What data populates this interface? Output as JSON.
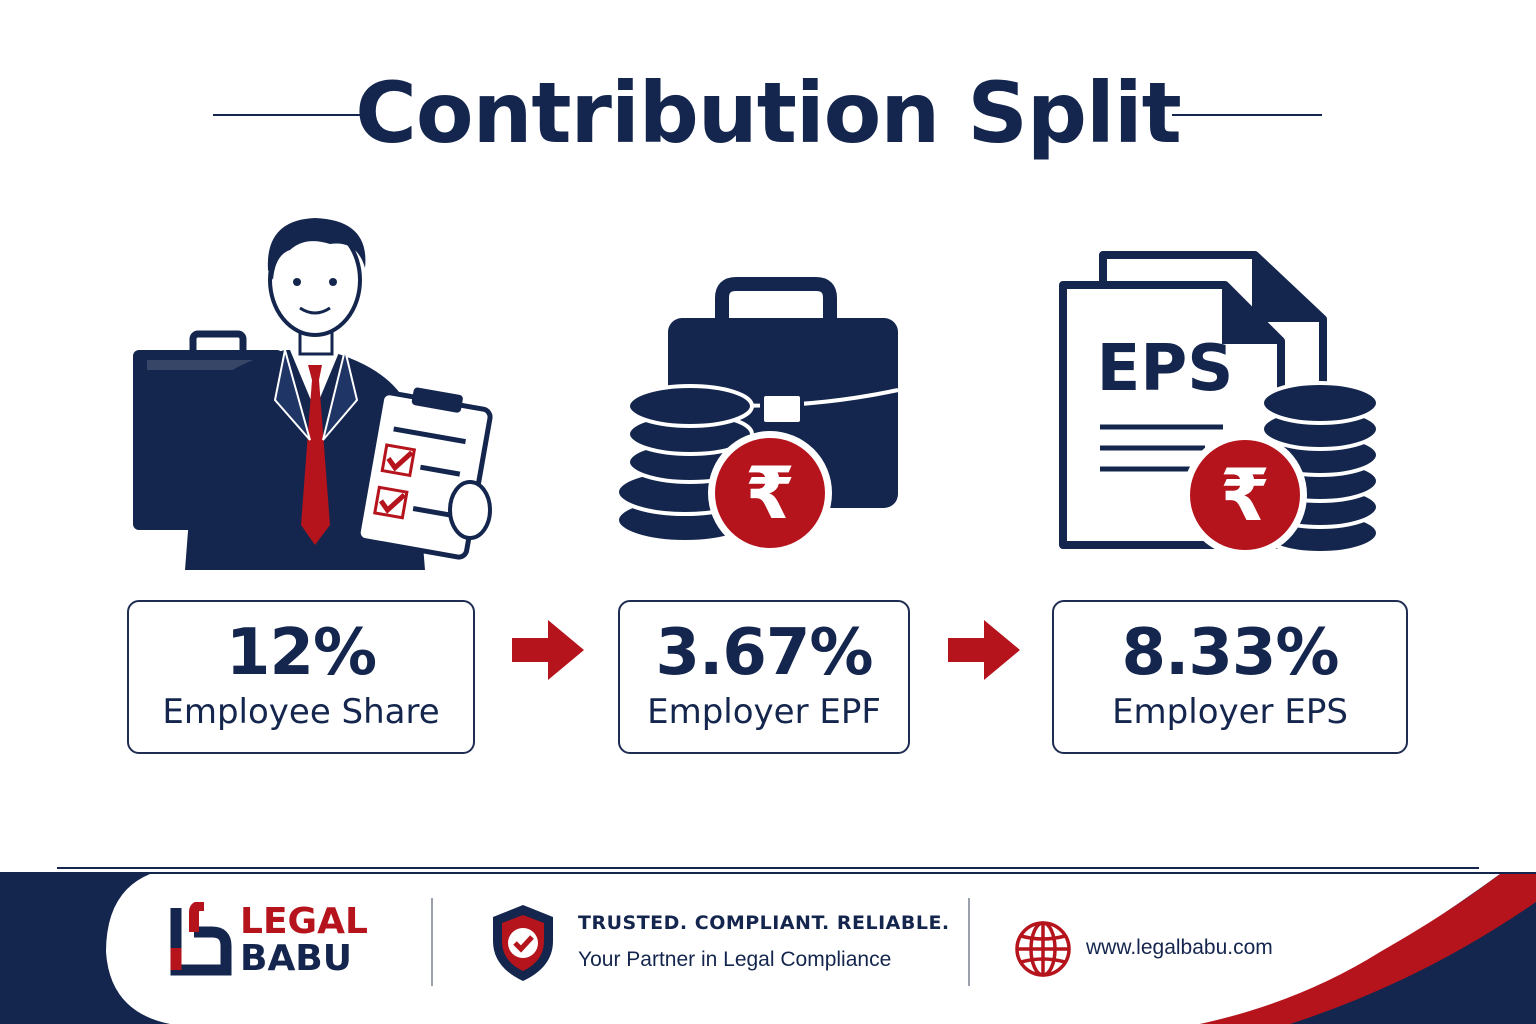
{
  "header": {
    "title": "Contribution Split"
  },
  "steps": [
    {
      "illustration": "employee-with-briefcase-and-checklist",
      "percent": "12%",
      "label": "Employee Share"
    },
    {
      "illustration": "briefcase-with-coins-rupee",
      "percent": "3.67%",
      "label": "Employer EPF"
    },
    {
      "illustration": "eps-document-with-coins-rupee",
      "percent": "8.33%",
      "label": "Employer EPS",
      "document_text": "EPS"
    }
  ],
  "footer": {
    "brand_line1": "LEGAL",
    "brand_line2": "BABU",
    "tagline": "TRUSTED. COMPLIANT. RELIABLE.",
    "subtagline": "Your Partner in Legal Compliance",
    "website": "www.legalbabu.com"
  },
  "colors": {
    "navy": "#14264d",
    "red": "#b5141c",
    "white": "#ffffff"
  }
}
